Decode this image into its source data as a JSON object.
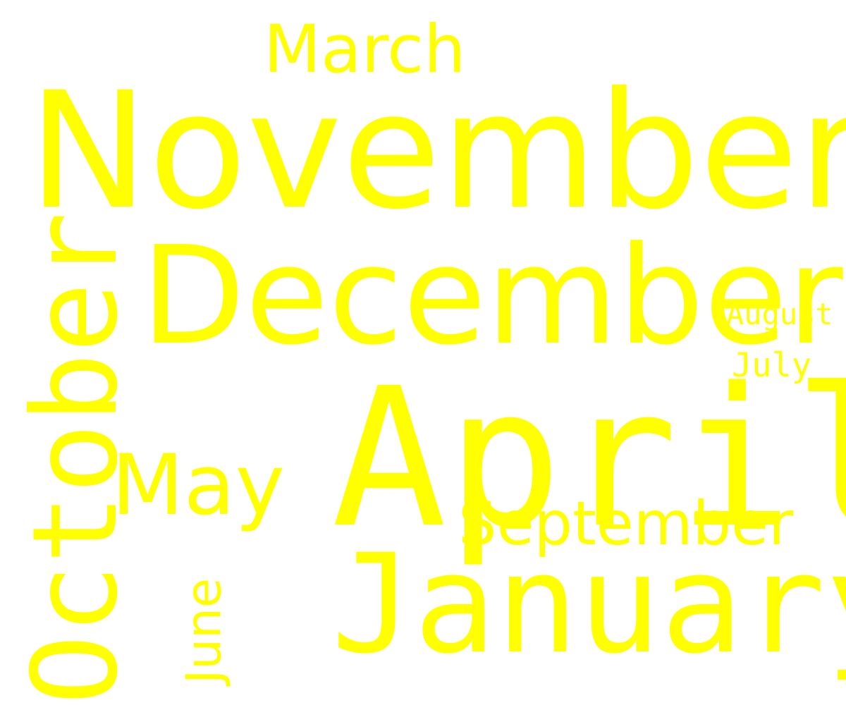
{
  "word_color": "#ffff00",
  "background_color": "#ffffff",
  "words": {
    "november": "November",
    "december": "December",
    "april": "April",
    "january": "January",
    "october": "October",
    "march": "March",
    "september": "September",
    "may": "May",
    "june": "June",
    "august": "August",
    "july": "July"
  }
}
